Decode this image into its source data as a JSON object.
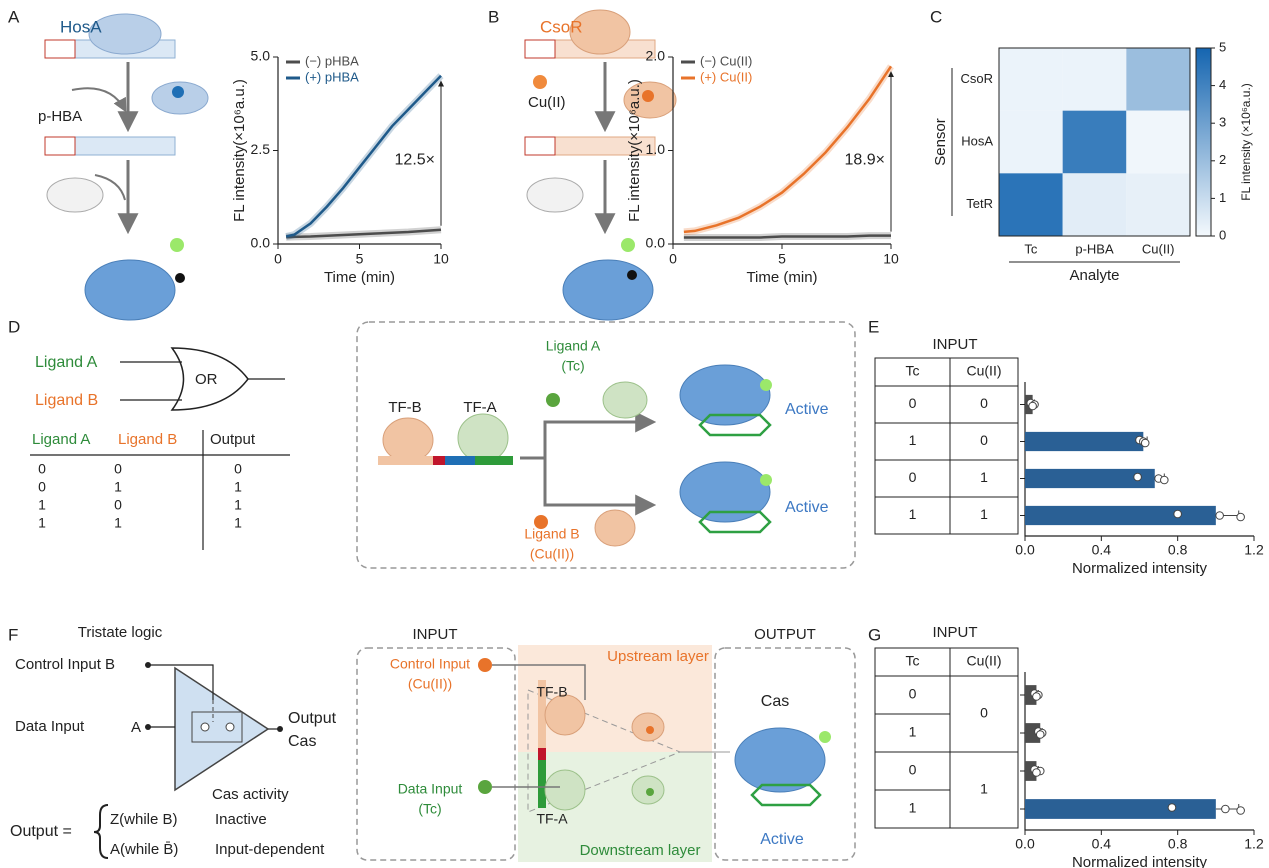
{
  "panel_labels": [
    "A",
    "B",
    "C",
    "D",
    "E",
    "F",
    "G"
  ],
  "diagram_a": {
    "sensor": "HosA",
    "ligand": "p-HBA"
  },
  "diagram_b": {
    "sensor": "CsoR",
    "ligand": "Cu(II)"
  },
  "logic_or": {
    "input_a": "Ligand A",
    "input_b": "Ligand B",
    "gate": "OR"
  },
  "truth_table": {
    "header": [
      "Ligand A",
      "Ligand B",
      "Output"
    ],
    "rows": [
      [
        "0",
        "0",
        "0"
      ],
      [
        "0",
        "1",
        "1"
      ],
      [
        "1",
        "0",
        "1"
      ],
      [
        "1",
        "1",
        "1"
      ]
    ]
  },
  "circuit_d": {
    "tf_b": "TF-B",
    "tf_a": "TF-A",
    "ligand_a": "Ligand A",
    "ligand_a_name": "(Tc)",
    "ligand_b": "Ligand B",
    "ligand_b_name": "(Cu(II))",
    "states": [
      "Active",
      "Active"
    ]
  },
  "tristate": {
    "title": "Tristate logic",
    "control": "Control Input B",
    "data": "Data Input",
    "data_pin": "A",
    "output": "Output",
    "output_name": "Cas",
    "activity_header": "Cas activity",
    "output_label": "Output =",
    "states": [
      {
        "condition": "Z(while B)",
        "activity": "Inactive"
      },
      {
        "condition": "A(while B̄)",
        "activity": "Input-dependent"
      }
    ]
  },
  "circuit_f": {
    "input": "INPUT",
    "output": "OUTPUT",
    "control": "Control Input",
    "control_name": "(Cu(II))",
    "data": "Data Input",
    "data_name": "(Tc)",
    "upstream": "Upstream layer",
    "downstream": "Downstream layer",
    "tf_b": "TF-B",
    "tf_a": "TF-A",
    "cas": "Cas",
    "state": "Active"
  },
  "tables": {
    "E": {
      "title": "INPUT",
      "columns": [
        "Tc",
        "Cu(II)"
      ],
      "rows": [
        [
          "0",
          "0"
        ],
        [
          "1",
          "0"
        ],
        [
          "0",
          "1"
        ],
        [
          "1",
          "1"
        ]
      ]
    },
    "G": {
      "title": "INPUT",
      "columns": [
        "Tc",
        "Cu(II)"
      ],
      "tc": [
        "0",
        "1",
        "0",
        "1"
      ],
      "cu": [
        "0",
        "1"
      ]
    }
  },
  "chart_data": [
    {
      "type": "line",
      "xlabel": "Time (min)",
      "ylabel": "FL intensity(×10⁶a.u.)",
      "x": [
        0.5,
        1,
        2,
        3,
        4,
        5,
        6,
        7,
        8,
        9,
        10
      ],
      "xlim": [
        0,
        10
      ],
      "xticks": [
        0,
        5,
        10
      ],
      "ylim": [
        0,
        5
      ],
      "yticks": [
        {
          "value": 0,
          "label": "0.0"
        },
        {
          "value": 2.5,
          "label": "2.5"
        },
        {
          "value": 5,
          "label": "5.0"
        }
      ],
      "series": [
        {
          "name": "(−) pHBA",
          "color": "#4d4d4d",
          "values": [
            0.18,
            0.19,
            0.2,
            0.22,
            0.24,
            0.26,
            0.28,
            0.3,
            0.32,
            0.35,
            0.38
          ]
        },
        {
          "name": "(+) pHBA",
          "color": "#1f5a8a",
          "values": [
            0.2,
            0.25,
            0.55,
            1.0,
            1.5,
            2.05,
            2.6,
            3.15,
            3.6,
            4.05,
            4.5
          ]
        }
      ],
      "annotation": "12.5×"
    },
    {
      "type": "line",
      "xlabel": "Time (min)",
      "ylabel": "FL intensity(×10⁶a.u.)",
      "x": [
        0.5,
        1,
        2,
        3,
        4,
        5,
        6,
        7,
        8,
        9,
        10
      ],
      "xlim": [
        0,
        10
      ],
      "xticks": [
        0,
        5,
        10
      ],
      "ylim": [
        0,
        2
      ],
      "yticks": [
        {
          "value": 0,
          "label": "0.0"
        },
        {
          "value": 1,
          "label": "1.0"
        },
        {
          "value": 2,
          "label": "2.0"
        }
      ],
      "series": [
        {
          "name": "(−) Cu(II)",
          "color": "#4d4d4d",
          "values": [
            0.07,
            0.07,
            0.07,
            0.07,
            0.07,
            0.08,
            0.08,
            0.08,
            0.08,
            0.09,
            0.09
          ]
        },
        {
          "name": "(+) Cu(II)",
          "color": "#e8732a",
          "values": [
            0.13,
            0.14,
            0.2,
            0.28,
            0.4,
            0.55,
            0.75,
            0.98,
            1.25,
            1.55,
            1.9
          ]
        }
      ],
      "annotation": "18.9×"
    },
    {
      "type": "heatmap",
      "xlabel": "Analyte",
      "ylabel": "Sensor",
      "categories": [
        "Tc",
        "p-HBA",
        "Cu(II)"
      ],
      "rows": [
        "CsoR",
        "HosA",
        "TetR"
      ],
      "values": [
        [
          0.2,
          0.2,
          2.0
        ],
        [
          0.2,
          4.2,
          0.1
        ],
        [
          4.5,
          0.4,
          0.3
        ]
      ],
      "colorbar_label": "FL intensity (×10⁶a.u.)",
      "clim": [
        0,
        5
      ],
      "cticks": [
        0,
        1,
        2,
        3,
        4,
        5
      ]
    },
    {
      "type": "barh",
      "xlabel": "Normalized intensity",
      "xlim": [
        0,
        1.2
      ],
      "xticks": [
        {
          "value": 0,
          "label": "0.0"
        },
        {
          "value": 0.4,
          "label": "0.4"
        },
        {
          "value": 0.8,
          "label": "0.8"
        },
        {
          "value": 1.2,
          "label": "1.2"
        }
      ],
      "values": [
        0.04,
        0.62,
        0.68,
        1.0
      ],
      "errors": [
        0.01,
        0.02,
        0.05,
        0.12
      ],
      "colors": [
        "#4d4d4d",
        "#2a6095",
        "#2a6095",
        "#2a6095"
      ],
      "points": [
        [
          0.03,
          0.05,
          0.04
        ],
        [
          0.6,
          0.62,
          0.63
        ],
        [
          0.59,
          0.7,
          0.73
        ],
        [
          0.8,
          1.02,
          1.13
        ]
      ]
    },
    {
      "type": "barh",
      "xlabel": "Normalized intensity",
      "xlim": [
        0,
        1.2
      ],
      "xticks": [
        {
          "value": 0,
          "label": "0.0"
        },
        {
          "value": 0.4,
          "label": "0.4"
        },
        {
          "value": 0.8,
          "label": "0.8"
        },
        {
          "value": 1.2,
          "label": "1.2"
        }
      ],
      "values": [
        0.06,
        0.08,
        0.06,
        1.0
      ],
      "errors": [
        0.01,
        0.01,
        0.01,
        0.12
      ],
      "colors": [
        "#4d4d4d",
        "#4d4d4d",
        "#4d4d4d",
        "#2a6095"
      ],
      "points": [
        [
          0.05,
          0.07,
          0.06
        ],
        [
          0.07,
          0.09,
          0.08
        ],
        [
          0.05,
          0.08,
          0.06
        ],
        [
          0.77,
          1.05,
          1.13
        ]
      ]
    }
  ]
}
